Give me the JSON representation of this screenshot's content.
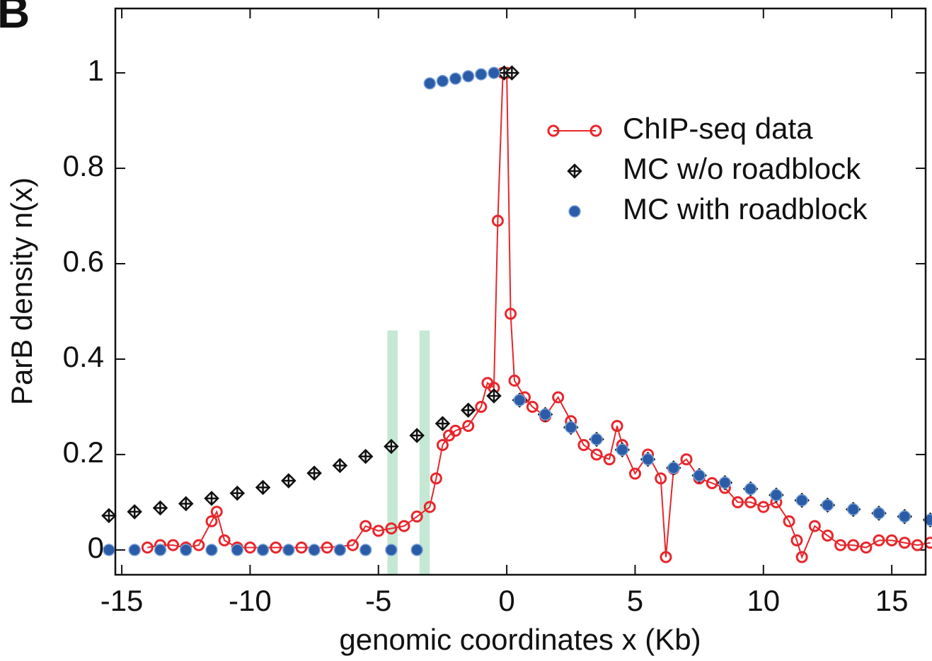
{
  "chart_data": {
    "type": "scatter",
    "panel_label": "B",
    "xlabel": "genomic coordinates x (Kb)",
    "ylabel": "ParB density n(x)",
    "xlim": [
      -15.25,
      16.32
    ],
    "ylim": [
      -0.052,
      1.135
    ],
    "xticks": [
      -15,
      -10,
      -5,
      0,
      5,
      10,
      15
    ],
    "yticks": [
      0,
      0.2,
      0.4,
      0.6,
      0.8,
      1
    ],
    "legend": "upper right",
    "highlights": [
      {
        "x0": -4.65,
        "x1": -4.25,
        "top": 0.46,
        "color": "#9fd9b8"
      },
      {
        "x0": -3.4,
        "x1": -3.0,
        "top": 0.46,
        "color": "#9fd9b8"
      }
    ],
    "series": [
      {
        "name": "ChIP-seq data",
        "color": "#e8262b",
        "marker": "circle-open",
        "line": true,
        "x": [
          -14,
          -13.5,
          -13,
          -12.5,
          -12,
          -11.5,
          -11.3,
          -11,
          -10.5,
          -10,
          -9,
          -8,
          -7,
          -6,
          -5.5,
          -5,
          -4.5,
          -4,
          -3.5,
          -3,
          -2.75,
          -2.5,
          -2.25,
          -2,
          -1.5,
          -1,
          -0.75,
          -0.5,
          -0.35,
          -0.15,
          0,
          0.15,
          0.3,
          0.7,
          1,
          1.5,
          2,
          2.5,
          3,
          3.5,
          4,
          4.3,
          4.5,
          5,
          5.5,
          6,
          6.2,
          6.5,
          7,
          7.5,
          8,
          8.5,
          9,
          9.5,
          10,
          10.5,
          11,
          11.3,
          11.5,
          12,
          12.5,
          13,
          13.5,
          14,
          14.5,
          15,
          15.5,
          16,
          16.5
        ],
        "values": [
          0.005,
          0.01,
          0.01,
          0.005,
          0.01,
          0.06,
          0.08,
          0.02,
          0.005,
          0.005,
          0.005,
          0.005,
          0.005,
          0.01,
          0.05,
          0.04,
          0.045,
          0.05,
          0.07,
          0.09,
          0.15,
          0.22,
          0.24,
          0.25,
          0.26,
          0.3,
          0.35,
          0.34,
          0.69,
          1,
          1,
          0.495,
          0.355,
          0.32,
          0.3,
          0.28,
          0.32,
          0.27,
          0.22,
          0.2,
          0.19,
          0.26,
          0.22,
          0.16,
          0.2,
          0.15,
          -0.015,
          0.17,
          0.19,
          0.15,
          0.14,
          0.13,
          0.1,
          0.1,
          0.09,
          0.1,
          0.06,
          0.02,
          -0.015,
          0.05,
          0.03,
          0.01,
          0.01,
          0.005,
          0.02,
          0.02,
          0.015,
          0.01,
          0.015
        ]
      },
      {
        "name": "MC w/o roadblock",
        "color": "#111111",
        "marker": "diamond",
        "x": [
          -15.5,
          -14.5,
          -13.5,
          -12.5,
          -11.5,
          -10.5,
          -9.5,
          -8.5,
          -7.5,
          -6.5,
          -5.5,
          -4.5,
          -3.5,
          -2.5,
          -1.5,
          -0.5,
          -0.1,
          0.2,
          0.5,
          1.5,
          2.5,
          3.5,
          4.5,
          5.5,
          6.5,
          7.5,
          8.5,
          9.5,
          10.5,
          11.5,
          12.5,
          13.5,
          14.5,
          15.5,
          16.5
        ],
        "values": [
          0.072,
          0.08,
          0.088,
          0.097,
          0.108,
          0.119,
          0.131,
          0.145,
          0.161,
          0.177,
          0.196,
          0.217,
          0.24,
          0.265,
          0.293,
          0.323,
          1,
          1,
          0.314,
          0.284,
          0.257,
          0.232,
          0.21,
          0.19,
          0.172,
          0.156,
          0.141,
          0.128,
          0.115,
          0.104,
          0.094,
          0.085,
          0.077,
          0.07,
          0.063
        ]
      },
      {
        "name": "MC with roadblock",
        "color": "#2a5ca8",
        "marker": "circle-filled",
        "x": [
          -15.5,
          -14.5,
          -13.5,
          -12.5,
          -11.5,
          -10.5,
          -9.5,
          -8.5,
          -7.5,
          -6.5,
          -5.5,
          -4.5,
          -3.5,
          -3,
          -2.5,
          -2,
          -1.5,
          -1,
          -0.5,
          0.5,
          1.5,
          2.5,
          3.5,
          4.5,
          5.5,
          6.5,
          7.5,
          8.5,
          9.5,
          10.5,
          11.5,
          12.5,
          13.5,
          14.5,
          15.5,
          16.5
        ],
        "values": [
          0,
          0,
          0,
          0,
          0,
          0,
          0,
          0,
          0,
          0,
          0,
          0,
          0,
          0.978,
          0.983,
          0.988,
          0.993,
          0.997,
          1,
          0.314,
          0.284,
          0.257,
          0.232,
          0.21,
          0.19,
          0.172,
          0.156,
          0.141,
          0.128,
          0.115,
          0.104,
          0.094,
          0.085,
          0.077,
          0.07,
          0.063
        ]
      }
    ]
  }
}
